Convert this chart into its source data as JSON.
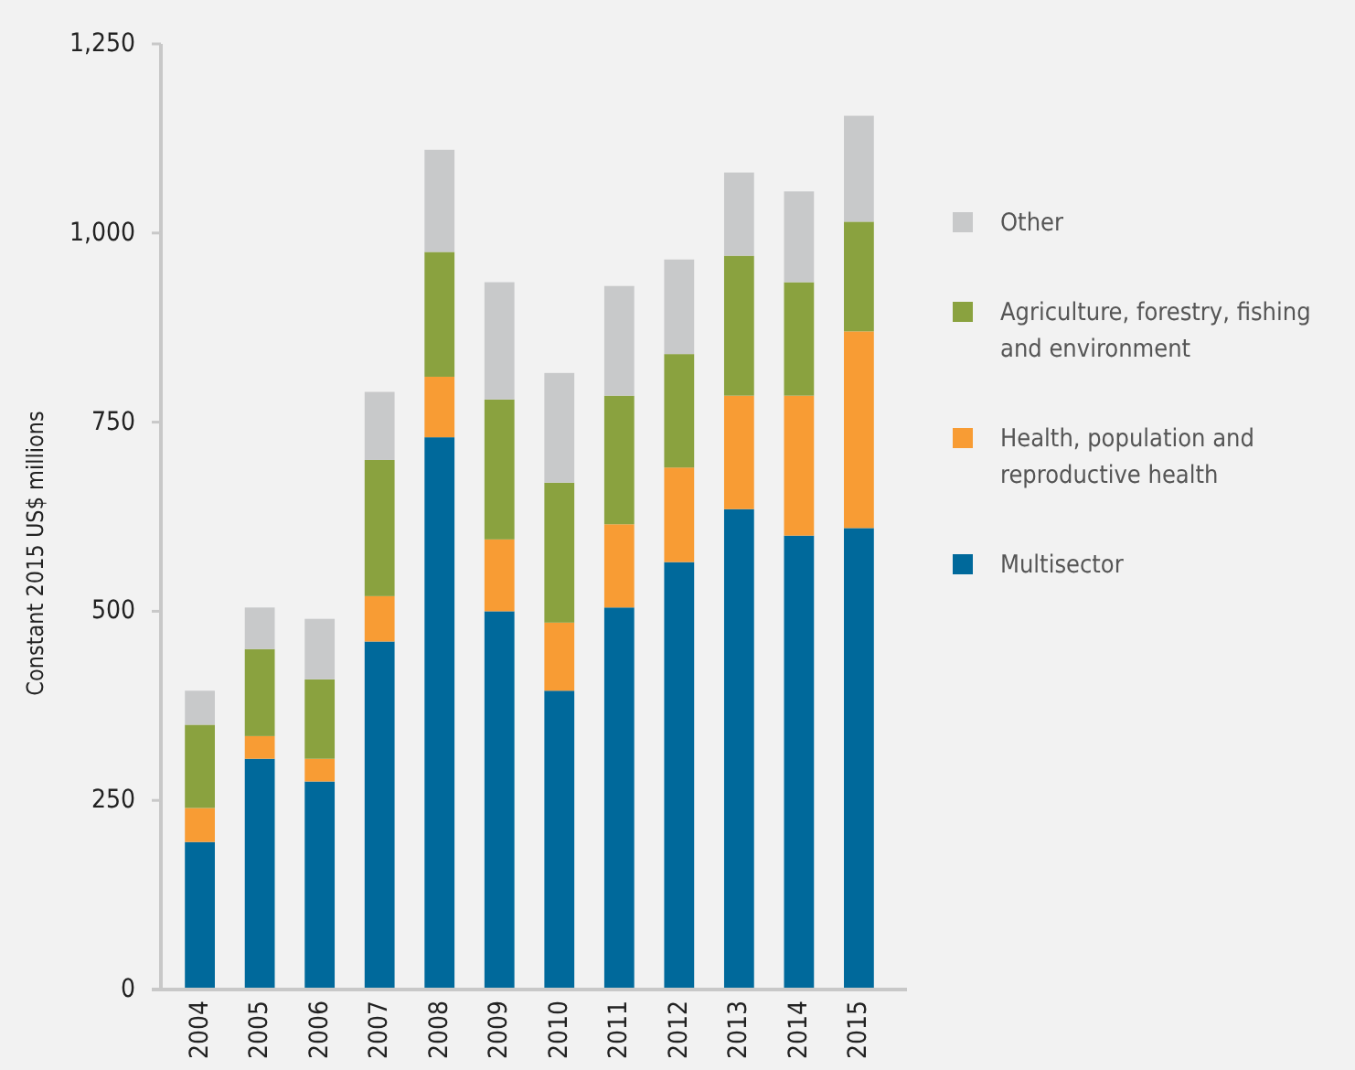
{
  "chart_data": {
    "type": "bar",
    "stacked": true,
    "ylabel": "Constant 2015 US$ millions",
    "categories": [
      "2004",
      "2005",
      "2006",
      "2007",
      "2008",
      "2009",
      "2010",
      "2011",
      "2012",
      "2013",
      "2014",
      "2015"
    ],
    "series": [
      {
        "name": "Multisector",
        "color": "#00699b",
        "values": [
          195,
          305,
          275,
          460,
          730,
          500,
          395,
          505,
          565,
          635,
          600,
          610
        ]
      },
      {
        "name": "Health, population and reproductive health",
        "color": "#f89c34",
        "values": [
          45,
          30,
          30,
          60,
          80,
          95,
          90,
          110,
          125,
          150,
          185,
          260
        ]
      },
      {
        "name": "Agriculture, forestry, fishing and environment",
        "color": "#8aa23f",
        "values": [
          110,
          115,
          105,
          180,
          165,
          185,
          185,
          170,
          150,
          185,
          150,
          145
        ]
      },
      {
        "name": "Other",
        "color": "#c8c9ca",
        "values": [
          45,
          55,
          80,
          90,
          135,
          155,
          145,
          145,
          125,
          110,
          120,
          140
        ]
      }
    ],
    "ylim": [
      0,
      1250
    ],
    "yticks": [
      0,
      {
        "value": 250,
        "label": "250"
      },
      {
        "value": 500,
        "label": "500"
      },
      {
        "value": 750,
        "label": "750"
      },
      {
        "value": 1000,
        "label": "1,000"
      },
      {
        "value": 1250,
        "label": "1,250"
      }
    ],
    "legend": "right"
  }
}
